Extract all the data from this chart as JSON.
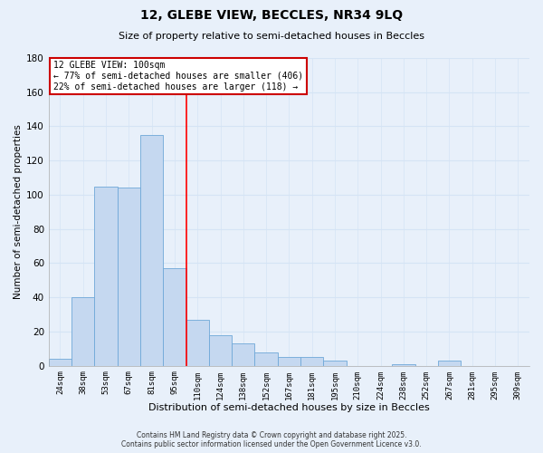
{
  "title": "12, GLEBE VIEW, BECCLES, NR34 9LQ",
  "subtitle": "Size of property relative to semi-detached houses in Beccles",
  "xlabel": "Distribution of semi-detached houses by size in Beccles",
  "ylabel": "Number of semi-detached properties",
  "bar_labels": [
    "24sqm",
    "38sqm",
    "53sqm",
    "67sqm",
    "81sqm",
    "95sqm",
    "110sqm",
    "124sqm",
    "138sqm",
    "152sqm",
    "167sqm",
    "181sqm",
    "195sqm",
    "210sqm",
    "224sqm",
    "238sqm",
    "252sqm",
    "267sqm",
    "281sqm",
    "295sqm",
    "309sqm"
  ],
  "bar_values": [
    4,
    40,
    105,
    104,
    135,
    57,
    27,
    18,
    13,
    8,
    5,
    5,
    3,
    0,
    0,
    1,
    0,
    3,
    0,
    0,
    0
  ],
  "bar_color": "#c5d8f0",
  "bar_edge_color": "#6fa8d8",
  "grid_color": "#d5e4f5",
  "vline_x": 5.5,
  "vline_label": "12 GLEBE VIEW: 100sqm",
  "pct_smaller": 77,
  "pct_smaller_count": 406,
  "pct_larger": 22,
  "pct_larger_count": 118,
  "annotation_box_facecolor": "#ffffff",
  "annotation_box_edgecolor": "#cc0000",
  "ylim": [
    0,
    180
  ],
  "yticks": [
    0,
    20,
    40,
    60,
    80,
    100,
    120,
    140,
    160,
    180
  ],
  "footer_line1": "Contains HM Land Registry data © Crown copyright and database right 2025.",
  "footer_line2": "Contains public sector information licensed under the Open Government Licence v3.0.",
  "bg_color": "#e8f0fa"
}
